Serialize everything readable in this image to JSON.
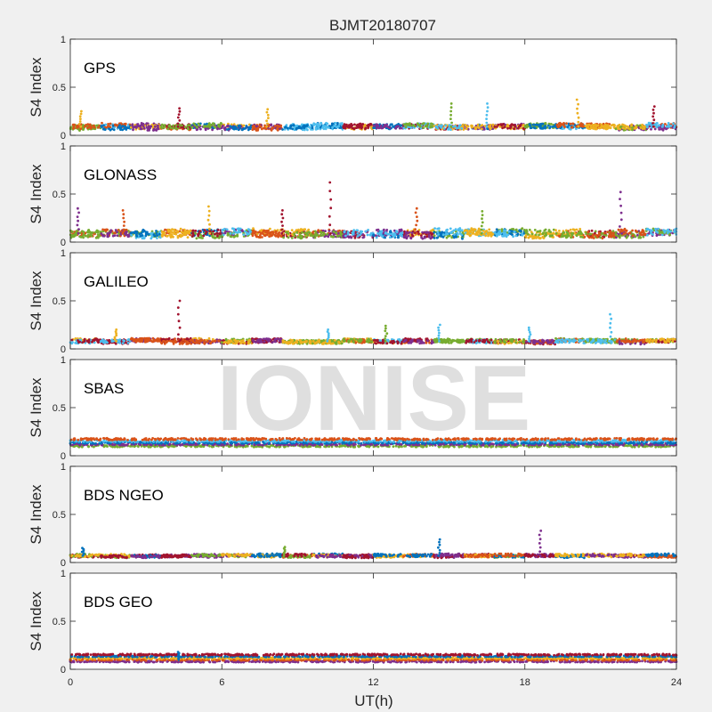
{
  "title": "BJMT20180707",
  "xlabel": "UT(h)",
  "watermark": "IONISE",
  "colors": {
    "blue": "#0072BD",
    "orange": "#D95319",
    "yellow": "#EDB120",
    "purple": "#7E2F8E",
    "green": "#77AC30",
    "cyan": "#4DBEEE",
    "red": "#A2142F",
    "background": "#f0f0f0",
    "axes": "#ffffff",
    "watermark": "#d9d9d9"
  },
  "chart_data": {
    "type": "scatter",
    "title": "BJMT20180707",
    "xlabel": "UT(h)",
    "xlim": [
      0,
      24
    ],
    "xticks": [
      0,
      6,
      12,
      18,
      24
    ],
    "ylim": [
      0,
      1
    ],
    "yticks": [
      0,
      0.5,
      1
    ],
    "yticklabels": [
      "0",
      "0.5",
      "1"
    ],
    "grid": false,
    "panels": [
      {
        "label": "GPS",
        "ylabel": "S4 Index",
        "base": 0.09,
        "spread": 0.05,
        "colors": [
          "blue",
          "orange",
          "yellow",
          "purple",
          "green",
          "cyan",
          "red"
        ],
        "spikes": [
          [
            0.4,
            0.25
          ],
          [
            4.3,
            0.28
          ],
          [
            7.8,
            0.27
          ],
          [
            15.1,
            0.33
          ],
          [
            16.5,
            0.33
          ],
          [
            20.1,
            0.37
          ],
          [
            23.1,
            0.3
          ]
        ]
      },
      {
        "label": "GLONASS",
        "ylabel": "S4 Index",
        "base": 0.09,
        "spread": 0.07,
        "colors": [
          "blue",
          "orange",
          "yellow",
          "purple",
          "green",
          "cyan",
          "red"
        ],
        "spikes": [
          [
            0.3,
            0.35
          ],
          [
            2.1,
            0.33
          ],
          [
            5.5,
            0.37
          ],
          [
            8.4,
            0.33
          ],
          [
            10.3,
            0.62
          ],
          [
            13.7,
            0.35
          ],
          [
            16.3,
            0.32
          ],
          [
            21.8,
            0.52
          ]
        ]
      },
      {
        "label": "GALILEO",
        "ylabel": "S4 Index",
        "base": 0.08,
        "spread": 0.04,
        "colors": [
          "yellow",
          "orange",
          "green",
          "red",
          "purple",
          "cyan"
        ],
        "spikes": [
          [
            1.8,
            0.2
          ],
          [
            4.3,
            0.5
          ],
          [
            10.2,
            0.2
          ],
          [
            12.5,
            0.24
          ],
          [
            14.6,
            0.25
          ],
          [
            18.2,
            0.22
          ],
          [
            21.4,
            0.36
          ]
        ]
      },
      {
        "label": "SBAS",
        "ylabel": "S4 Index",
        "base": 0.12,
        "spread": 0.02,
        "colors": [
          "green",
          "purple",
          "blue",
          "cyan",
          "orange"
        ],
        "spikes": []
      },
      {
        "label": "BDS NGEO",
        "ylabel": "S4 Index",
        "base": 0.07,
        "spread": 0.03,
        "colors": [
          "yellow",
          "blue",
          "green",
          "purple",
          "orange",
          "red"
        ],
        "spikes": [
          [
            0.5,
            0.15
          ],
          [
            8.5,
            0.16
          ],
          [
            14.6,
            0.24
          ],
          [
            18.6,
            0.33
          ]
        ]
      },
      {
        "label": "BDS GEO",
        "ylabel": "S4 Index",
        "base": 0.1,
        "spread": 0.015,
        "colors": [
          "purple",
          "orange",
          "yellow",
          "blue",
          "red"
        ],
        "spikes": [
          [
            4.3,
            0.18
          ]
        ]
      }
    ]
  }
}
